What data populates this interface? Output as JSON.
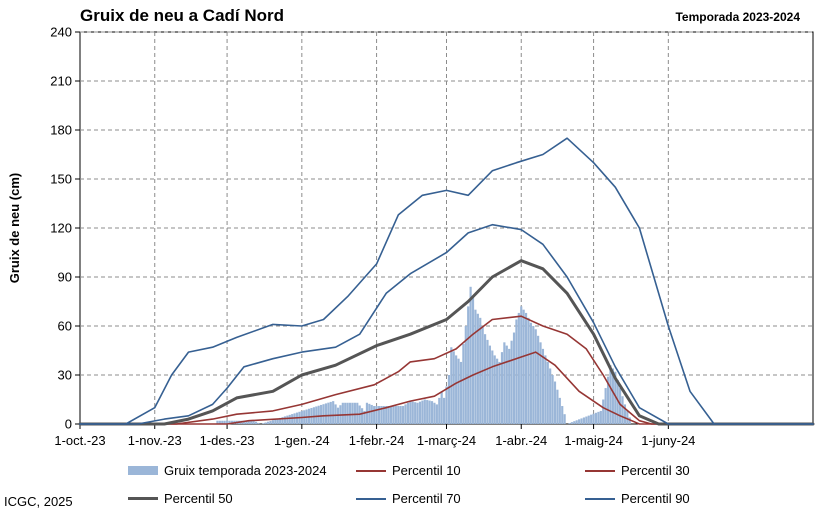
{
  "title": "Gruix de neu a Cadí Nord",
  "subtitle": "Temporada 2023-2024",
  "footer": "ICGC, 2025",
  "chart_data": {
    "type": "area",
    "title": "Gruix de neu a Cadí Nord",
    "ylabel": "Gruix de neu (cm)",
    "xlabel": "",
    "ylim": [
      0,
      240
    ],
    "xlim": [
      "2023-10-01",
      "2024-07-31"
    ],
    "yticks": [
      0,
      30,
      60,
      90,
      120,
      150,
      180,
      210,
      240
    ],
    "xticks": [
      {
        "date": "2023-10-01",
        "label": "1-oct.-23"
      },
      {
        "date": "2023-11-01",
        "label": "1-nov.-23"
      },
      {
        "date": "2023-12-01",
        "label": "1-des.-23"
      },
      {
        "date": "2024-01-01",
        "label": "1-gen.-24"
      },
      {
        "date": "2024-02-01",
        "label": "1-febr.-24"
      },
      {
        "date": "2024-03-01",
        "label": "1-març-24"
      },
      {
        "date": "2024-04-01",
        "label": "1-abr.-24"
      },
      {
        "date": "2024-05-01",
        "label": "1-maig-24"
      },
      {
        "date": "2024-06-01",
        "label": "1-juny-24"
      }
    ],
    "grid": true,
    "legend": "bottom",
    "bars": {
      "name": "Gruix temporada 2023-2024",
      "color": "#9bb6d8",
      "points": [
        [
          "2023-11-27",
          2
        ],
        [
          "2023-12-02",
          2
        ],
        [
          "2023-12-07",
          2
        ],
        [
          "2023-12-12",
          2
        ],
        [
          "2023-12-15",
          0
        ],
        [
          "2024-01-14",
          14
        ],
        [
          "2024-01-16",
          10
        ],
        [
          "2024-01-18",
          13
        ],
        [
          "2024-01-21",
          13
        ],
        [
          "2024-01-24",
          13
        ],
        [
          "2024-01-27",
          8
        ],
        [
          "2024-01-28",
          13
        ],
        [
          "2024-01-31",
          11
        ],
        [
          "2024-02-03",
          11
        ],
        [
          "2024-02-06",
          11
        ],
        [
          "2024-02-09",
          11
        ],
        [
          "2024-02-12",
          11
        ],
        [
          "2024-02-15",
          14
        ],
        [
          "2024-02-18",
          13
        ],
        [
          "2024-02-21",
          15
        ],
        [
          "2024-02-24",
          14
        ],
        [
          "2024-02-26",
          12
        ],
        [
          "2024-02-28",
          20
        ],
        [
          "2024-02-29",
          16
        ],
        [
          "2024-03-02",
          30
        ],
        [
          "2024-03-03",
          47
        ],
        [
          "2024-03-05",
          42
        ],
        [
          "2024-03-07",
          38
        ],
        [
          "2024-03-09",
          60
        ],
        [
          "2024-03-11",
          84
        ],
        [
          "2024-03-12",
          78
        ],
        [
          "2024-03-13",
          70
        ],
        [
          "2024-03-15",
          65
        ],
        [
          "2024-03-17",
          55
        ],
        [
          "2024-03-19",
          48
        ],
        [
          "2024-03-21",
          42
        ],
        [
          "2024-03-23",
          38
        ],
        [
          "2024-03-25",
          50
        ],
        [
          "2024-03-27",
          46
        ],
        [
          "2024-03-29",
          56
        ],
        [
          "2024-03-30",
          64
        ],
        [
          "2024-04-01",
          72
        ],
        [
          "2024-04-03",
          68
        ],
        [
          "2024-04-05",
          62
        ],
        [
          "2024-04-07",
          58
        ],
        [
          "2024-04-09",
          50
        ],
        [
          "2024-04-11",
          42
        ],
        [
          "2024-04-13",
          34
        ],
        [
          "2024-04-15",
          26
        ],
        [
          "2024-04-17",
          16
        ],
        [
          "2024-04-19",
          6
        ],
        [
          "2024-04-20",
          0
        ],
        [
          "2024-05-04",
          8
        ],
        [
          "2024-05-06",
          22
        ],
        [
          "2024-05-08",
          36
        ],
        [
          "2024-05-10",
          32
        ],
        [
          "2024-05-12",
          22
        ],
        [
          "2024-05-14",
          12
        ],
        [
          "2024-05-16",
          4
        ],
        [
          "2024-05-17",
          0
        ]
      ]
    },
    "series": [
      {
        "name": "Percentil 10",
        "color": "#963634",
        "width": 1.6,
        "points": [
          [
            "2023-10-01",
            0
          ],
          [
            "2023-12-01",
            0
          ],
          [
            "2023-12-10",
            2
          ],
          [
            "2024-01-01",
            4
          ],
          [
            "2024-01-10",
            5
          ],
          [
            "2024-01-25",
            6
          ],
          [
            "2024-02-05",
            10
          ],
          [
            "2024-02-15",
            14
          ],
          [
            "2024-02-25",
            17
          ],
          [
            "2024-03-05",
            25
          ],
          [
            "2024-03-12",
            30
          ],
          [
            "2024-03-20",
            35
          ],
          [
            "2024-04-01",
            41
          ],
          [
            "2024-04-07",
            44
          ],
          [
            "2024-04-15",
            36
          ],
          [
            "2024-04-25",
            20
          ],
          [
            "2024-05-05",
            10
          ],
          [
            "2024-05-12",
            5
          ],
          [
            "2024-05-20",
            0
          ],
          [
            "2024-07-31",
            0
          ]
        ]
      },
      {
        "name": "Percentil 30",
        "color": "#963634",
        "width": 1.6,
        "points": [
          [
            "2023-10-01",
            0
          ],
          [
            "2023-11-10",
            0
          ],
          [
            "2023-11-25",
            3
          ],
          [
            "2023-12-05",
            6
          ],
          [
            "2023-12-20",
            8
          ],
          [
            "2024-01-01",
            12
          ],
          [
            "2024-01-15",
            18
          ],
          [
            "2024-01-31",
            24
          ],
          [
            "2024-02-10",
            32
          ],
          [
            "2024-02-15",
            38
          ],
          [
            "2024-02-25",
            40
          ],
          [
            "2024-03-05",
            46
          ],
          [
            "2024-03-12",
            55
          ],
          [
            "2024-03-20",
            64
          ],
          [
            "2024-04-01",
            66
          ],
          [
            "2024-04-10",
            60
          ],
          [
            "2024-04-20",
            55
          ],
          [
            "2024-04-28",
            46
          ],
          [
            "2024-05-05",
            30
          ],
          [
            "2024-05-12",
            12
          ],
          [
            "2024-05-20",
            2
          ],
          [
            "2024-05-25",
            0
          ],
          [
            "2024-07-31",
            0
          ]
        ]
      },
      {
        "name": "Percentil 50",
        "color": "#555555",
        "width": 3,
        "points": [
          [
            "2023-10-01",
            0
          ],
          [
            "2023-11-05",
            0
          ],
          [
            "2023-11-15",
            3
          ],
          [
            "2023-11-25",
            8
          ],
          [
            "2023-12-05",
            16
          ],
          [
            "2023-12-20",
            20
          ],
          [
            "2024-01-01",
            30
          ],
          [
            "2024-01-15",
            36
          ],
          [
            "2024-02-01",
            48
          ],
          [
            "2024-02-15",
            55
          ],
          [
            "2024-03-01",
            64
          ],
          [
            "2024-03-10",
            75
          ],
          [
            "2024-03-20",
            90
          ],
          [
            "2024-04-01",
            100
          ],
          [
            "2024-04-10",
            95
          ],
          [
            "2024-04-20",
            80
          ],
          [
            "2024-05-01",
            55
          ],
          [
            "2024-05-10",
            28
          ],
          [
            "2024-05-20",
            5
          ],
          [
            "2024-05-28",
            0
          ],
          [
            "2024-07-31",
            0
          ]
        ]
      },
      {
        "name": "Percentil 70",
        "color": "#366092",
        "width": 1.6,
        "points": [
          [
            "2023-10-01",
            0
          ],
          [
            "2023-10-25",
            0
          ],
          [
            "2023-11-05",
            3
          ],
          [
            "2023-11-15",
            5
          ],
          [
            "2023-11-25",
            12
          ],
          [
            "2023-12-01",
            22
          ],
          [
            "2023-12-08",
            35
          ],
          [
            "2023-12-20",
            40
          ],
          [
            "2024-01-01",
            44
          ],
          [
            "2024-01-15",
            47
          ],
          [
            "2024-01-25",
            55
          ],
          [
            "2024-02-05",
            80
          ],
          [
            "2024-02-15",
            92
          ],
          [
            "2024-03-01",
            105
          ],
          [
            "2024-03-10",
            117
          ],
          [
            "2024-03-20",
            122
          ],
          [
            "2024-04-01",
            119
          ],
          [
            "2024-04-10",
            110
          ],
          [
            "2024-04-20",
            90
          ],
          [
            "2024-05-01",
            62
          ],
          [
            "2024-05-10",
            35
          ],
          [
            "2024-05-20",
            10
          ],
          [
            "2024-06-01",
            0
          ],
          [
            "2024-07-31",
            0
          ]
        ]
      },
      {
        "name": "Percentil 90",
        "color": "#366092",
        "width": 1.6,
        "points": [
          [
            "2023-10-01",
            0
          ],
          [
            "2023-10-20",
            0
          ],
          [
            "2023-11-01",
            10
          ],
          [
            "2023-11-08",
            30
          ],
          [
            "2023-11-15",
            44
          ],
          [
            "2023-11-25",
            47
          ],
          [
            "2023-12-05",
            53
          ],
          [
            "2023-12-20",
            61
          ],
          [
            "2024-01-01",
            60
          ],
          [
            "2024-01-10",
            64
          ],
          [
            "2024-01-20",
            78
          ],
          [
            "2024-02-01",
            98
          ],
          [
            "2024-02-10",
            128
          ],
          [
            "2024-02-20",
            140
          ],
          [
            "2024-03-01",
            143
          ],
          [
            "2024-03-10",
            140
          ],
          [
            "2024-03-20",
            155
          ],
          [
            "2024-03-30",
            160
          ],
          [
            "2024-04-10",
            165
          ],
          [
            "2024-04-20",
            175
          ],
          [
            "2024-05-01",
            160
          ],
          [
            "2024-05-10",
            145
          ],
          [
            "2024-05-20",
            120
          ],
          [
            "2024-06-01",
            60
          ],
          [
            "2024-06-10",
            20
          ],
          [
            "2024-06-20",
            0
          ],
          [
            "2024-07-31",
            0
          ]
        ]
      }
    ]
  }
}
